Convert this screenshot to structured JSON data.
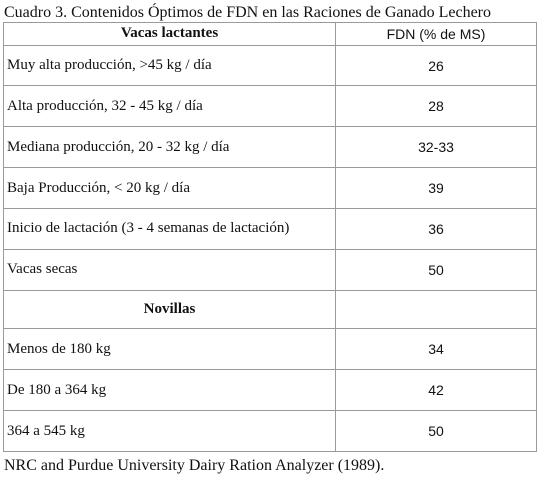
{
  "caption": "Cuadro 3. Contenidos Óptimos de FDN en las Raciones de Ganado Lechero",
  "table": {
    "header": {
      "label": "Vacas lactantes",
      "value": "FDN (% de MS)"
    },
    "lactating_rows": [
      {
        "label": "Muy alta producción, >45 kg / día",
        "value": "26"
      },
      {
        "label": "Alta producción, 32 - 45 kg / día",
        "value": "28"
      },
      {
        "label": "Mediana producción, 20 - 32 kg / día",
        "value": "32-33"
      },
      {
        "label": "Baja Producción, < 20 kg / día",
        "value": "39"
      },
      {
        "label": "Inicio de lactación (3 - 4 semanas de lactación)",
        "value": "36"
      },
      {
        "label": "Vacas secas",
        "value": "50"
      }
    ],
    "section2": {
      "label": "Novillas",
      "value": ""
    },
    "heifer_rows": [
      {
        "label": "Menos de 180 kg",
        "value": "34"
      },
      {
        "label": "De 180 a 364 kg",
        "value": "42"
      },
      {
        "label": "364 a 545 kg",
        "value": "50"
      }
    ]
  },
  "source": "NRC and Purdue University Dairy Ration Analyzer (1989)."
}
